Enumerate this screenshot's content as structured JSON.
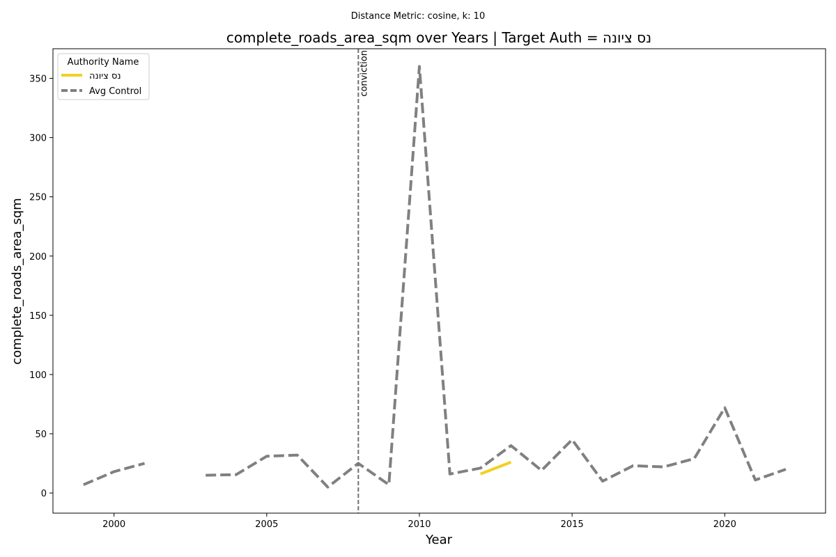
{
  "chart_data": {
    "type": "line",
    "suptitle": "Distance Metric: cosine, k: 10",
    "title": "complete_roads_area_sqm over Years | Target Auth = נס ציונה",
    "xlabel": "Year",
    "ylabel": "complete_roads_area_sqm",
    "xlim": [
      1998,
      2023.3
    ],
    "ylim": [
      -17,
      375
    ],
    "xticks": [
      2000,
      2005,
      2010,
      2015,
      2020
    ],
    "yticks": [
      0,
      50,
      100,
      150,
      200,
      250,
      300,
      350
    ],
    "grid": false,
    "legend": {
      "title": "Authority Name",
      "placement": "top-left"
    },
    "annotation": {
      "label": "conviction",
      "x": 2008
    },
    "series": [
      {
        "name": "נס ציונה",
        "color": "#f2d022",
        "style": "solid",
        "points": [
          [
            2012,
            16
          ],
          [
            2013,
            26
          ]
        ]
      },
      {
        "name": "Avg Control",
        "color": "#808080",
        "style": "dashed",
        "points": [
          [
            1999,
            7
          ],
          [
            2000,
            18
          ],
          [
            2001,
            25
          ],
          [
            2002,
            null
          ],
          [
            2003,
            15
          ],
          [
            2004,
            15.5
          ],
          [
            2005,
            31
          ],
          [
            2006,
            32
          ],
          [
            2007,
            5
          ],
          [
            2008,
            25
          ],
          [
            2009,
            7
          ],
          [
            2010,
            360
          ],
          [
            2011,
            16
          ],
          [
            2012,
            21
          ],
          [
            2013,
            40
          ],
          [
            2014,
            19
          ],
          [
            2015,
            45
          ],
          [
            2016,
            10
          ],
          [
            2017,
            23
          ],
          [
            2018,
            22
          ],
          [
            2019,
            29
          ],
          [
            2020,
            72
          ],
          [
            2021,
            11
          ],
          [
            2022,
            20
          ]
        ]
      }
    ]
  }
}
